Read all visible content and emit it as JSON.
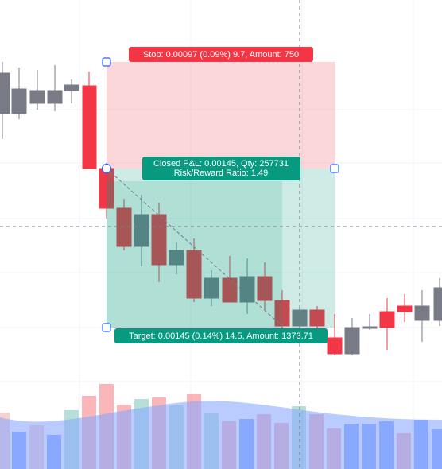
{
  "stop_label": "Stop: 0.00097 (0.09%) 9.7, Amount: 750",
  "result_label": {
    "line1": "Closed P&L: 0.00145, Qty: 257731",
    "line2": "Risk/Reward Ratio: 1.49"
  },
  "target_label": "Target: 0.00145 (0.14%) 14.5, Amount: 1373.71"
}
